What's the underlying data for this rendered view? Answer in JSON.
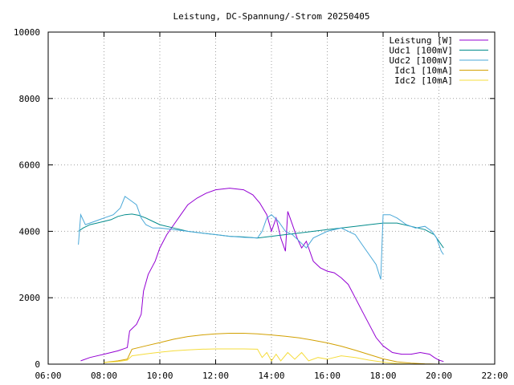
{
  "chart_data": {
    "type": "line",
    "title": "Leistung, DC-Spannung/-Strom 20250405",
    "xlabel": "",
    "ylabel": "",
    "xlim": [
      "06:00",
      "22:00"
    ],
    "ylim": [
      0,
      10000
    ],
    "x_ticks": [
      "06:00",
      "08:00",
      "10:00",
      "12:00",
      "14:00",
      "16:00",
      "18:00",
      "20:00",
      "22:00"
    ],
    "y_ticks": [
      "0",
      "2000",
      "4000",
      "6000",
      "8000",
      "10000"
    ],
    "grid": true,
    "legend_position": "top-right",
    "series": [
      {
        "name": "Leistung [W]",
        "color": "#9400d3",
        "points": [
          [
            "07:10",
            100
          ],
          [
            "07:30",
            200
          ],
          [
            "08:00",
            300
          ],
          [
            "08:30",
            400
          ],
          [
            "08:50",
            500
          ],
          [
            "08:55",
            1000
          ],
          [
            "09:10",
            1200
          ],
          [
            "09:20",
            1500
          ],
          [
            "09:25",
            2200
          ],
          [
            "09:35",
            2700
          ],
          [
            "09:50",
            3100
          ],
          [
            "10:00",
            3500
          ],
          [
            "10:15",
            3900
          ],
          [
            "10:30",
            4200
          ],
          [
            "10:45",
            4500
          ],
          [
            "11:00",
            4800
          ],
          [
            "11:20",
            5000
          ],
          [
            "11:40",
            5150
          ],
          [
            "12:00",
            5250
          ],
          [
            "12:30",
            5300
          ],
          [
            "13:00",
            5250
          ],
          [
            "13:20",
            5100
          ],
          [
            "13:35",
            4850
          ],
          [
            "13:50",
            4500
          ],
          [
            "14:00",
            4000
          ],
          [
            "14:10",
            4400
          ],
          [
            "14:20",
            3800
          ],
          [
            "14:30",
            3400
          ],
          [
            "14:35",
            4600
          ],
          [
            "14:45",
            4200
          ],
          [
            "14:55",
            3800
          ],
          [
            "15:05",
            3500
          ],
          [
            "15:15",
            3700
          ],
          [
            "15:30",
            3100
          ],
          [
            "15:45",
            2900
          ],
          [
            "16:00",
            2800
          ],
          [
            "16:15",
            2750
          ],
          [
            "16:30",
            2600
          ],
          [
            "16:45",
            2400
          ],
          [
            "17:00",
            2000
          ],
          [
            "17:15",
            1600
          ],
          [
            "17:30",
            1200
          ],
          [
            "17:45",
            800
          ],
          [
            "18:00",
            550
          ],
          [
            "18:20",
            350
          ],
          [
            "18:40",
            300
          ],
          [
            "19:00",
            300
          ],
          [
            "19:20",
            350
          ],
          [
            "19:40",
            300
          ],
          [
            "19:50",
            200
          ],
          [
            "20:00",
            120
          ],
          [
            "20:10",
            80
          ]
        ]
      },
      {
        "name": "Udc1 [100mV]",
        "color": "#008b8b",
        "points": [
          [
            "07:05",
            4000
          ],
          [
            "07:15",
            4100
          ],
          [
            "07:30",
            4200
          ],
          [
            "07:45",
            4250
          ],
          [
            "08:00",
            4300
          ],
          [
            "08:15",
            4350
          ],
          [
            "08:30",
            4450
          ],
          [
            "08:45",
            4500
          ],
          [
            "09:00",
            4520
          ],
          [
            "09:15",
            4480
          ],
          [
            "09:30",
            4400
          ],
          [
            "09:45",
            4300
          ],
          [
            "10:00",
            4200
          ],
          [
            "10:30",
            4100
          ],
          [
            "11:00",
            4000
          ],
          [
            "11:30",
            3950
          ],
          [
            "12:00",
            3900
          ],
          [
            "12:30",
            3850
          ],
          [
            "13:00",
            3830
          ],
          [
            "13:30",
            3800
          ],
          [
            "14:00",
            3850
          ],
          [
            "14:30",
            3900
          ],
          [
            "15:00",
            3950
          ],
          [
            "15:30",
            4000
          ],
          [
            "16:00",
            4050
          ],
          [
            "16:30",
            4100
          ],
          [
            "17:00",
            4150
          ],
          [
            "17:30",
            4200
          ],
          [
            "18:00",
            4250
          ],
          [
            "18:30",
            4250
          ],
          [
            "19:00",
            4150
          ],
          [
            "19:30",
            4050
          ],
          [
            "19:50",
            3900
          ],
          [
            "20:00",
            3700
          ],
          [
            "20:10",
            3500
          ]
        ]
      },
      {
        "name": "Udc2 [100mV]",
        "color": "#4aa8d8",
        "points": [
          [
            "07:05",
            3600
          ],
          [
            "07:10",
            4500
          ],
          [
            "07:20",
            4200
          ],
          [
            "07:40",
            4300
          ],
          [
            "08:00",
            4400
          ],
          [
            "08:20",
            4500
          ],
          [
            "08:35",
            4700
          ],
          [
            "08:45",
            5050
          ],
          [
            "09:00",
            4900
          ],
          [
            "09:10",
            4800
          ],
          [
            "09:20",
            4400
          ],
          [
            "09:30",
            4200
          ],
          [
            "09:45",
            4100
          ],
          [
            "10:00",
            4100
          ],
          [
            "10:30",
            4050
          ],
          [
            "11:00",
            4000
          ],
          [
            "11:30",
            3950
          ],
          [
            "12:00",
            3900
          ],
          [
            "12:30",
            3850
          ],
          [
            "13:00",
            3820
          ],
          [
            "13:30",
            3800
          ],
          [
            "13:40",
            4000
          ],
          [
            "13:50",
            4400
          ],
          [
            "14:00",
            4500
          ],
          [
            "14:15",
            4300
          ],
          [
            "14:30",
            4000
          ],
          [
            "14:45",
            3900
          ],
          [
            "15:00",
            3700
          ],
          [
            "15:15",
            3500
          ],
          [
            "15:30",
            3800
          ],
          [
            "16:00",
            4000
          ],
          [
            "16:30",
            4100
          ],
          [
            "17:00",
            3900
          ],
          [
            "17:15",
            3600
          ],
          [
            "17:30",
            3300
          ],
          [
            "17:45",
            3000
          ],
          [
            "17:55",
            2550
          ],
          [
            "18:00",
            4500
          ],
          [
            "18:15",
            4500
          ],
          [
            "18:30",
            4400
          ],
          [
            "18:50",
            4200
          ],
          [
            "19:10",
            4100
          ],
          [
            "19:30",
            4150
          ],
          [
            "19:45",
            4000
          ],
          [
            "19:55",
            3800
          ],
          [
            "20:05",
            3400
          ],
          [
            "20:10",
            3300
          ]
        ]
      },
      {
        "name": "Idc1 [10mA]",
        "color": "#d2a000",
        "points": [
          [
            "08:00",
            50
          ],
          [
            "08:30",
            100
          ],
          [
            "08:50",
            150
          ],
          [
            "09:00",
            450
          ],
          [
            "09:30",
            550
          ],
          [
            "10:00",
            650
          ],
          [
            "10:30",
            750
          ],
          [
            "11:00",
            830
          ],
          [
            "11:30",
            880
          ],
          [
            "12:00",
            910
          ],
          [
            "12:30",
            930
          ],
          [
            "13:00",
            930
          ],
          [
            "13:30",
            910
          ],
          [
            "14:00",
            880
          ],
          [
            "14:30",
            840
          ],
          [
            "15:00",
            790
          ],
          [
            "15:30",
            720
          ],
          [
            "16:00",
            640
          ],
          [
            "16:30",
            540
          ],
          [
            "17:00",
            420
          ],
          [
            "17:30",
            290
          ],
          [
            "18:00",
            160
          ],
          [
            "18:30",
            70
          ],
          [
            "19:00",
            30
          ],
          [
            "19:30",
            10
          ],
          [
            "20:00",
            0
          ]
        ]
      },
      {
        "name": "Idc2 [10mA]",
        "color": "#f5dc3c",
        "points": [
          [
            "08:00",
            50
          ],
          [
            "08:30",
            80
          ],
          [
            "08:50",
            120
          ],
          [
            "09:00",
            250
          ],
          [
            "09:30",
            310
          ],
          [
            "10:00",
            360
          ],
          [
            "10:30",
            400
          ],
          [
            "11:00",
            430
          ],
          [
            "11:30",
            450
          ],
          [
            "12:00",
            460
          ],
          [
            "12:30",
            460
          ],
          [
            "13:00",
            460
          ],
          [
            "13:30",
            450
          ],
          [
            "13:40",
            200
          ],
          [
            "13:50",
            350
          ],
          [
            "14:00",
            100
          ],
          [
            "14:10",
            300
          ],
          [
            "14:20",
            100
          ],
          [
            "14:35",
            350
          ],
          [
            "14:50",
            150
          ],
          [
            "15:05",
            350
          ],
          [
            "15:20",
            100
          ],
          [
            "15:40",
            200
          ],
          [
            "16:00",
            150
          ],
          [
            "16:30",
            250
          ],
          [
            "17:00",
            200
          ],
          [
            "17:30",
            120
          ],
          [
            "18:00",
            60
          ],
          [
            "18:30",
            20
          ],
          [
            "19:00",
            0
          ]
        ]
      }
    ]
  }
}
